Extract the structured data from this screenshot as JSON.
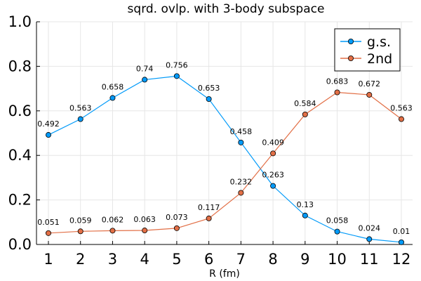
{
  "chart_data": {
    "type": "line",
    "title": "sqrd. ovlp. with 3-body subspace",
    "xlabel": "R (fm)",
    "ylabel": "",
    "x": [
      1,
      2,
      3,
      4,
      5,
      6,
      7,
      8,
      9,
      10,
      11,
      12
    ],
    "xticks": [
      "1",
      "2",
      "3",
      "4",
      "5",
      "6",
      "7",
      "8",
      "9",
      "10",
      "11",
      "12"
    ],
    "yticks": [
      "0.0",
      "0.2",
      "0.4",
      "0.6",
      "0.8",
      "1.0"
    ],
    "ylim": [
      0,
      1
    ],
    "grid": true,
    "legend_position": "top-right",
    "series": [
      {
        "name": "g.s.",
        "color": "#009af9",
        "marker": "circle",
        "values": [
          0.492,
          0.563,
          0.658,
          0.74,
          0.756,
          0.653,
          0.458,
          0.263,
          0.13,
          0.058,
          0.024,
          0.01
        ],
        "labels": [
          "0.492",
          "0.563",
          "0.658",
          "0.74",
          "0.756",
          "0.653",
          "0.458",
          "0.263",
          "0.13",
          "0.058",
          "0.024",
          "0.01"
        ]
      },
      {
        "name": "2nd",
        "color": "#e26f46",
        "marker": "circle",
        "values": [
          0.051,
          0.059,
          0.062,
          0.063,
          0.073,
          0.117,
          0.232,
          0.409,
          0.584,
          0.683,
          0.672,
          0.563
        ],
        "labels": [
          "0.051",
          "0.059",
          "0.062",
          "0.063",
          "0.073",
          "0.117",
          "0.232",
          "0.409",
          "0.584",
          "0.683",
          "0.672",
          "0.563"
        ]
      }
    ]
  }
}
